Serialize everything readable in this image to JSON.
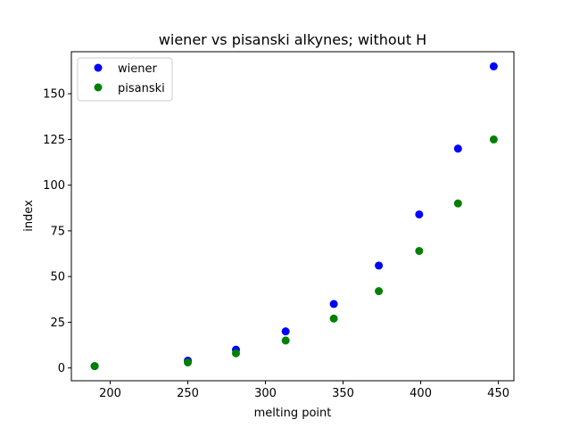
{
  "chart_data": {
    "type": "scatter",
    "title": "wiener vs pisanski alkynes; without H",
    "xlabel": "melting point",
    "ylabel": "index",
    "xlim": [
      175,
      460
    ],
    "ylim": [
      -7,
      173
    ],
    "xticks": [
      200,
      250,
      300,
      350,
      400,
      450
    ],
    "yticks": [
      0,
      25,
      50,
      75,
      100,
      125,
      150
    ],
    "grid": false,
    "legend_position": "top-left",
    "series": [
      {
        "name": "wiener",
        "color": "#0000ff",
        "points": [
          [
            190,
            1
          ],
          [
            250,
            4
          ],
          [
            281,
            10
          ],
          [
            313,
            20
          ],
          [
            344,
            35
          ],
          [
            373,
            56
          ],
          [
            399,
            84
          ],
          [
            424,
            120
          ],
          [
            447,
            165
          ]
        ]
      },
      {
        "name": "pisanski",
        "color": "#008000",
        "points": [
          [
            190,
            1
          ],
          [
            250,
            3
          ],
          [
            281,
            8
          ],
          [
            313,
            15
          ],
          [
            344,
            27
          ],
          [
            373,
            42
          ],
          [
            399,
            64
          ],
          [
            424,
            90
          ],
          [
            447,
            125
          ]
        ]
      }
    ]
  }
}
